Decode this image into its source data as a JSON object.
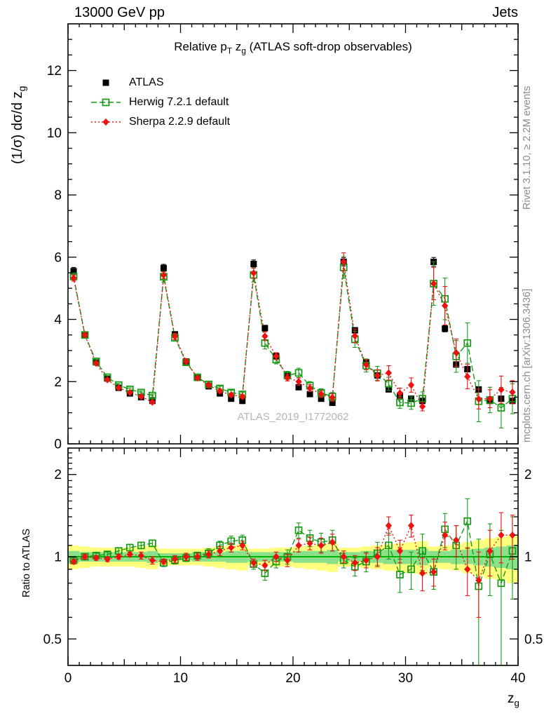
{
  "header": {
    "left": "13000 GeV pp",
    "right": "Jets"
  },
  "side_notes": {
    "top": "Rivet 3.1.10, ≥ 2.2M events",
    "bottom": "mcplots.cern.ch [arXiv:1306.3436]"
  },
  "watermark": "ATLAS_2019_I1772062",
  "ratio_label": "Ratio to ATLAS",
  "title_rich": [
    {
      "t": "Relative p"
    },
    {
      "t": "T",
      "sub": true
    },
    {
      "t": " z"
    },
    {
      "t": "g",
      "sub": true
    },
    {
      "t": " (ATLAS soft-drop observables)"
    }
  ],
  "ylabel_rich": [
    {
      "t": "(1/σ) dσ/d z"
    },
    {
      "t": "g",
      "sub": true
    }
  ],
  "xlabel_rich": [
    {
      "t": "z"
    },
    {
      "t": "g",
      "sub": true
    }
  ],
  "colors": {
    "atlas": "#000000",
    "herwig": "#159a15",
    "sherpa": "#ee1111",
    "band_yellow": "#ffff7d",
    "band_green": "#8be08b",
    "ratio_line": "#00b400",
    "frame": "#000000",
    "side_text": "#8a8a8a",
    "watermark": "#b5b5b5"
  },
  "legend": [
    {
      "label": "ATLAS",
      "color": "#000000",
      "marker": "square-filled",
      "line": "none"
    },
    {
      "label": "Herwig 7.2.1 default",
      "color": "#159a15",
      "marker": "square-open",
      "line": "dashed"
    },
    {
      "label": "Sherpa 2.2.9 default",
      "color": "#ee1111",
      "marker": "diamond-filled",
      "line": "dotted"
    }
  ],
  "axes": {
    "main_yticks": [
      0,
      2,
      4,
      6,
      8,
      10,
      12
    ],
    "main_ytick_labels": [
      "0",
      "2",
      "4",
      "6",
      "8",
      "10",
      "12"
    ],
    "ratio_yticks": [
      0.5,
      1,
      2
    ],
    "ratio_ytick_labels": [
      "0.5",
      "1",
      "2"
    ],
    "ratio_yminors": [
      0.6,
      0.7,
      0.8,
      0.9,
      1.1,
      1.2,
      1.3,
      1.4,
      1.5,
      1.6,
      1.7,
      1.8,
      1.9,
      2.1,
      2.2,
      2.3,
      2.4
    ],
    "xticks": [
      0,
      10,
      20,
      30,
      40
    ],
    "xtick_labels": [
      "0",
      "10",
      "20",
      "30",
      "40"
    ]
  },
  "chart_data": [
    {
      "type": "line",
      "panel": "main",
      "title": "Relative pT zg (ATLAS soft-drop observables)",
      "ylabel": "(1/σ) dσ/d zg",
      "xlabel": "zg",
      "ylim": [
        0,
        13.5
      ],
      "xlim": [
        0,
        40
      ],
      "grid": false,
      "legend_position": "top-left",
      "x": [
        0.5,
        1.5,
        2.5,
        3.5,
        4.5,
        5.5,
        6.5,
        7.5,
        8.5,
        9.5,
        10.5,
        11.5,
        12.5,
        13.5,
        14.5,
        15.5,
        16.5,
        17.5,
        18.5,
        19.5,
        20.5,
        21.5,
        22.5,
        23.5,
        24.5,
        25.5,
        26.5,
        27.5,
        28.5,
        29.5,
        30.5,
        31.5,
        32.5,
        33.5,
        34.5,
        35.5,
        36.5,
        37.5,
        38.5,
        39.5
      ],
      "series": [
        {
          "name": "ATLAS",
          "color": "#000000",
          "marker": "square-filled",
          "line": "none",
          "values": [
            5.55,
            3.5,
            2.62,
            2.1,
            1.8,
            1.62,
            1.5,
            1.38,
            5.65,
            3.52,
            2.65,
            2.12,
            1.85,
            1.62,
            1.45,
            1.38,
            5.78,
            3.72,
            2.82,
            2.2,
            1.82,
            1.6,
            1.45,
            1.32,
            5.85,
            3.65,
            2.62,
            2.2,
            1.75,
            1.55,
            1.45,
            1.38,
            5.85,
            3.7,
            2.55,
            2.4,
            1.75,
            1.38,
            1.45,
            1.38
          ],
          "errors": [
            0.12,
            0.08,
            0.06,
            0.05,
            0.05,
            0.04,
            0.04,
            0.04,
            0.12,
            0.08,
            0.06,
            0.05,
            0.05,
            0.04,
            0.04,
            0.04,
            0.13,
            0.09,
            0.07,
            0.06,
            0.05,
            0.05,
            0.05,
            0.05,
            0.13,
            0.09,
            0.07,
            0.06,
            0.06,
            0.05,
            0.05,
            0.05,
            0.14,
            0.1,
            0.08,
            0.08,
            0.07,
            0.06,
            0.06,
            0.06
          ]
        },
        {
          "name": "Herwig 7.2.1 default",
          "color": "#159a15",
          "marker": "square-open",
          "line": "dashed",
          "values": [
            5.38,
            3.5,
            2.65,
            2.14,
            1.89,
            1.75,
            1.65,
            1.55,
            5.37,
            3.41,
            2.62,
            2.14,
            1.91,
            1.78,
            1.65,
            1.59,
            5.43,
            3.24,
            2.71,
            2.2,
            2.28,
            1.87,
            1.64,
            1.52,
            5.67,
            3.36,
            2.52,
            2.27,
            1.93,
            1.33,
            1.31,
            1.45,
            5.15,
            4.66,
            2.81,
            3.24,
            1.37,
            1.41,
            1.16,
            1.45
          ],
          "errors": [
            0.11,
            0.07,
            0.05,
            0.05,
            0.05,
            0.05,
            0.05,
            0.05,
            0.17,
            0.11,
            0.08,
            0.07,
            0.07,
            0.07,
            0.07,
            0.07,
            0.23,
            0.19,
            0.14,
            0.13,
            0.15,
            0.13,
            0.13,
            0.13,
            0.35,
            0.26,
            0.21,
            0.22,
            0.21,
            0.19,
            0.2,
            0.22,
            0.7,
            0.67,
            0.51,
            0.65,
            0.66,
            0.41,
            0.65,
            0.48
          ]
        },
        {
          "name": "Sherpa 2.2.9 default",
          "color": "#ee1111",
          "marker": "diamond-filled",
          "line": "dotted",
          "values": [
            5.33,
            3.5,
            2.59,
            2.06,
            1.8,
            1.65,
            1.52,
            1.34,
            5.42,
            3.45,
            2.65,
            2.12,
            1.89,
            1.7,
            1.57,
            1.52,
            5.49,
            3.46,
            2.82,
            2.13,
            2.0,
            1.79,
            1.6,
            1.49,
            5.85,
            3.47,
            2.54,
            2.2,
            2.28,
            1.63,
            1.89,
            1.2,
            5.15,
            4.44,
            2.93,
            2.16,
            1.44,
            1.45,
            1.74,
            1.66
          ],
          "errors": [
            0.1,
            0.07,
            0.05,
            0.04,
            0.04,
            0.03,
            0.04,
            0.04,
            0.11,
            0.1,
            0.08,
            0.06,
            0.06,
            0.06,
            0.06,
            0.06,
            0.16,
            0.14,
            0.11,
            0.11,
            0.12,
            0.11,
            0.11,
            0.12,
            0.29,
            0.22,
            0.16,
            0.18,
            0.23,
            0.16,
            0.23,
            0.14,
            0.52,
            0.62,
            0.44,
            0.39,
            0.32,
            0.29,
            0.44,
            0.37
          ]
        }
      ]
    },
    {
      "type": "line",
      "panel": "ratio",
      "ylabel": "Ratio to ATLAS",
      "yscale": "log",
      "ylim": [
        0.4,
        2.5
      ],
      "xlim": [
        0,
        40
      ],
      "reference_line": 1.0,
      "bands": {
        "yellow_halfwidth": [
          0.1,
          0.09,
          0.08,
          0.08,
          0.08,
          0.08,
          0.09,
          0.1,
          0.07,
          0.07,
          0.07,
          0.07,
          0.08,
          0.09,
          0.1,
          0.11,
          0.07,
          0.07,
          0.08,
          0.08,
          0.09,
          0.1,
          0.11,
          0.12,
          0.08,
          0.08,
          0.09,
          0.1,
          0.11,
          0.12,
          0.13,
          0.14,
          0.09,
          0.1,
          0.11,
          0.13,
          0.15,
          0.17,
          0.18,
          0.2
        ],
        "green_halfwidth": [
          0.05,
          0.04,
          0.04,
          0.04,
          0.04,
          0.04,
          0.04,
          0.05,
          0.03,
          0.03,
          0.03,
          0.04,
          0.04,
          0.04,
          0.05,
          0.05,
          0.04,
          0.04,
          0.04,
          0.04,
          0.05,
          0.05,
          0.05,
          0.06,
          0.04,
          0.04,
          0.05,
          0.05,
          0.06,
          0.06,
          0.06,
          0.07,
          0.05,
          0.05,
          0.06,
          0.06,
          0.07,
          0.08,
          0.09,
          0.1
        ]
      },
      "series": [
        {
          "name": "Herwig 7.2.1 default",
          "color": "#159a15",
          "marker": "square-open",
          "line": "dashed",
          "values": [
            0.97,
            1.0,
            1.01,
            1.02,
            1.05,
            1.08,
            1.1,
            1.12,
            0.95,
            0.97,
            0.99,
            1.01,
            1.03,
            1.1,
            1.14,
            1.15,
            0.94,
            0.87,
            0.96,
            1.0,
            1.25,
            1.17,
            1.13,
            1.15,
            0.97,
            0.92,
            0.96,
            1.03,
            1.1,
            0.86,
            0.9,
            1.05,
            0.88,
            1.26,
            1.1,
            1.35,
            0.78,
            1.02,
            0.8,
            1.05
          ],
          "errors": [
            0.02,
            0.02,
            0.02,
            0.02,
            0.03,
            0.03,
            0.03,
            0.03,
            0.03,
            0.03,
            0.03,
            0.03,
            0.04,
            0.04,
            0.05,
            0.05,
            0.04,
            0.05,
            0.05,
            0.06,
            0.08,
            0.08,
            0.09,
            0.1,
            0.06,
            0.07,
            0.08,
            0.1,
            0.12,
            0.12,
            0.14,
            0.16,
            0.12,
            0.18,
            0.2,
            0.28,
            0.38,
            0.3,
            0.45,
            0.35
          ]
        },
        {
          "name": "Sherpa 2.2.9 default",
          "color": "#ee1111",
          "marker": "diamond-filled",
          "line": "dotted",
          "values": [
            0.96,
            1.0,
            0.99,
            0.98,
            1.0,
            1.02,
            1.01,
            0.97,
            0.96,
            0.98,
            1.0,
            1.0,
            1.02,
            1.05,
            1.08,
            1.1,
            0.95,
            0.93,
            1.0,
            0.97,
            1.1,
            1.12,
            1.1,
            1.13,
            1.0,
            0.95,
            0.97,
            1.0,
            1.3,
            1.05,
            1.3,
            0.87,
            0.88,
            1.2,
            1.15,
            0.9,
            0.82,
            1.05,
            1.2,
            1.2
          ],
          "errors": [
            0.02,
            0.02,
            0.02,
            0.02,
            0.02,
            0.02,
            0.03,
            0.03,
            0.02,
            0.03,
            0.03,
            0.03,
            0.03,
            0.04,
            0.04,
            0.04,
            0.03,
            0.04,
            0.04,
            0.05,
            0.06,
            0.06,
            0.07,
            0.08,
            0.05,
            0.06,
            0.06,
            0.08,
            0.1,
            0.1,
            0.12,
            0.12,
            0.1,
            0.14,
            0.15,
            0.18,
            0.22,
            0.2,
            0.25,
            0.22
          ]
        }
      ]
    }
  ]
}
